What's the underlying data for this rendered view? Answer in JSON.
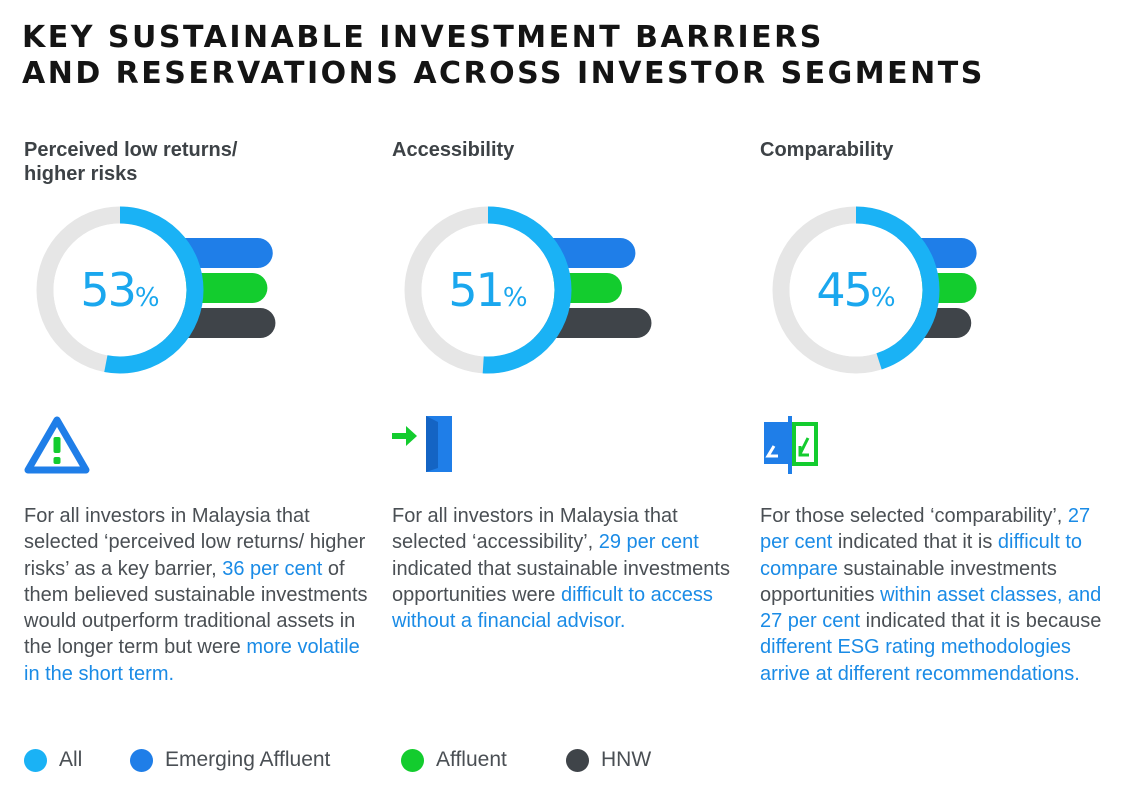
{
  "title": {
    "line1": "KEY SUSTAINABLE INVESTMENT BARRIERS",
    "line2": "AND RESERVATIONS ACROSS INVESTOR SEGMENTS"
  },
  "colors": {
    "all": "#1ab2f5",
    "emerging_affluent": "#1f7ee8",
    "affluent": "#13cc2e",
    "hnw": "#3f4449",
    "track": "#e6e6e6",
    "highlight": "#1a8be6"
  },
  "legend": [
    {
      "name": "All",
      "color": "#1ab2f5"
    },
    {
      "name": "Emerging Affluent",
      "color": "#1f7ee8"
    },
    {
      "name": "Affluent",
      "color": "#13cc2e"
    },
    {
      "name": "HNW",
      "color": "#3f4449"
    }
  ],
  "chart_data": [
    {
      "type": "bar",
      "title": "Perceived low returns/ higher risks",
      "donut": {
        "value": 53,
        "value_label": "53",
        "unit": "%"
      },
      "categories": [
        "Emerging Affluent",
        "Affluent",
        "HNW"
      ],
      "values": [
        57,
        55,
        58
      ],
      "icon": "warning-triangle-icon",
      "description": [
        {
          "text": "For all investors in Malaysia that selected ‘perceived low returns/ higher risks’ as a key barrier, ",
          "highlight": false
        },
        {
          "text": "36 per cent",
          "highlight": true
        },
        {
          "text": " of them believed sustainable investments would outperform traditional assets in the longer term but were ",
          "highlight": false
        },
        {
          "text": "more volatile in the short term.",
          "highlight": true
        }
      ]
    },
    {
      "type": "bar",
      "title": "Accessibility",
      "donut": {
        "value": 51,
        "value_label": "51",
        "unit": "%"
      },
      "categories": [
        "Emerging Affluent",
        "Affluent",
        "HNW"
      ],
      "values": [
        55,
        50,
        61
      ],
      "icon": "door-entry-icon",
      "description": [
        {
          "text": "For all investors in Malaysia that selected ‘accessibility’, ",
          "highlight": false
        },
        {
          "text": "29 per cent",
          "highlight": true
        },
        {
          "text": " indicated that sustainable investments opportunities were ",
          "highlight": false
        },
        {
          "text": "difficult to access without a financial advisor.",
          "highlight": true
        }
      ]
    },
    {
      "type": "bar",
      "title": "Comparability",
      "donut": {
        "value": 45,
        "value_label": "45",
        "unit": "%"
      },
      "categories": [
        "Emerging Affluent",
        "Affluent",
        "HNW"
      ],
      "values": [
        45,
        45,
        43
      ],
      "icon": "compare-panels-icon",
      "description": [
        {
          "text": "For those selected ‘comparability’, ",
          "highlight": false
        },
        {
          "text": "27 per cent",
          "highlight": true
        },
        {
          "text": " indicated that it is ",
          "highlight": false
        },
        {
          "text": "difficult to compare",
          "highlight": true
        },
        {
          "text": " sustainable investments opportunities ",
          "highlight": false
        },
        {
          "text": "within asset classes, and 27 per cent",
          "highlight": true
        },
        {
          "text": " indicated that it is because ",
          "highlight": false
        },
        {
          "text": "different ESG rating methodologies arrive at different recommendations.",
          "highlight": true
        }
      ]
    }
  ]
}
